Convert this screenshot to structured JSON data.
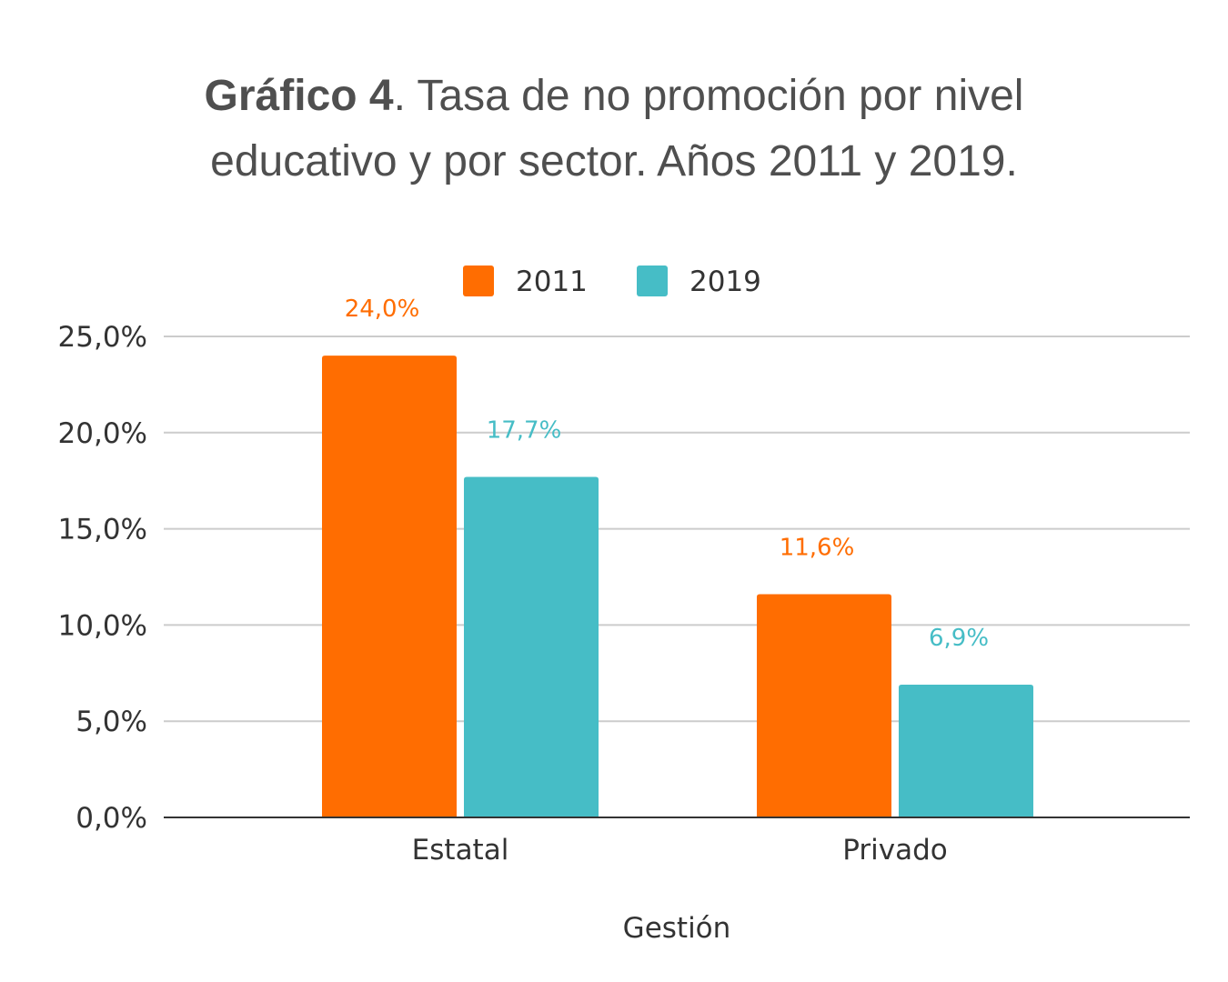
{
  "title": {
    "bold_part": "Gráfico 4",
    "line1_rest": ". Tasa de no promoción por nivel",
    "line2": "educativo y por sector. Años 2011 y 2019."
  },
  "chart_data": {
    "type": "bar",
    "categories": [
      "Estatal",
      "Privado"
    ],
    "series": [
      {
        "name": "2011",
        "values": [
          24.0,
          11.6
        ],
        "labels": [
          "24,0%",
          "11,6%"
        ],
        "color": "#ff6d01"
      },
      {
        "name": "2019",
        "values": [
          17.7,
          6.9
        ],
        "labels": [
          "17,7%",
          "6,9%"
        ],
        "color": "#46bdc6"
      }
    ],
    "xlabel": "Gestión",
    "ylabel": "",
    "ylim": [
      0,
      25
    ],
    "yticks": [
      0,
      5,
      10,
      15,
      20,
      25
    ],
    "ytick_labels": [
      "0,0%",
      "5,0%",
      "10,0%",
      "15,0%",
      "20,0%",
      "25,0%"
    ],
    "grid": true,
    "legend": "top-center",
    "colors": {
      "grid": "#cccccc",
      "axis": "#333333",
      "text": "#333333"
    }
  }
}
